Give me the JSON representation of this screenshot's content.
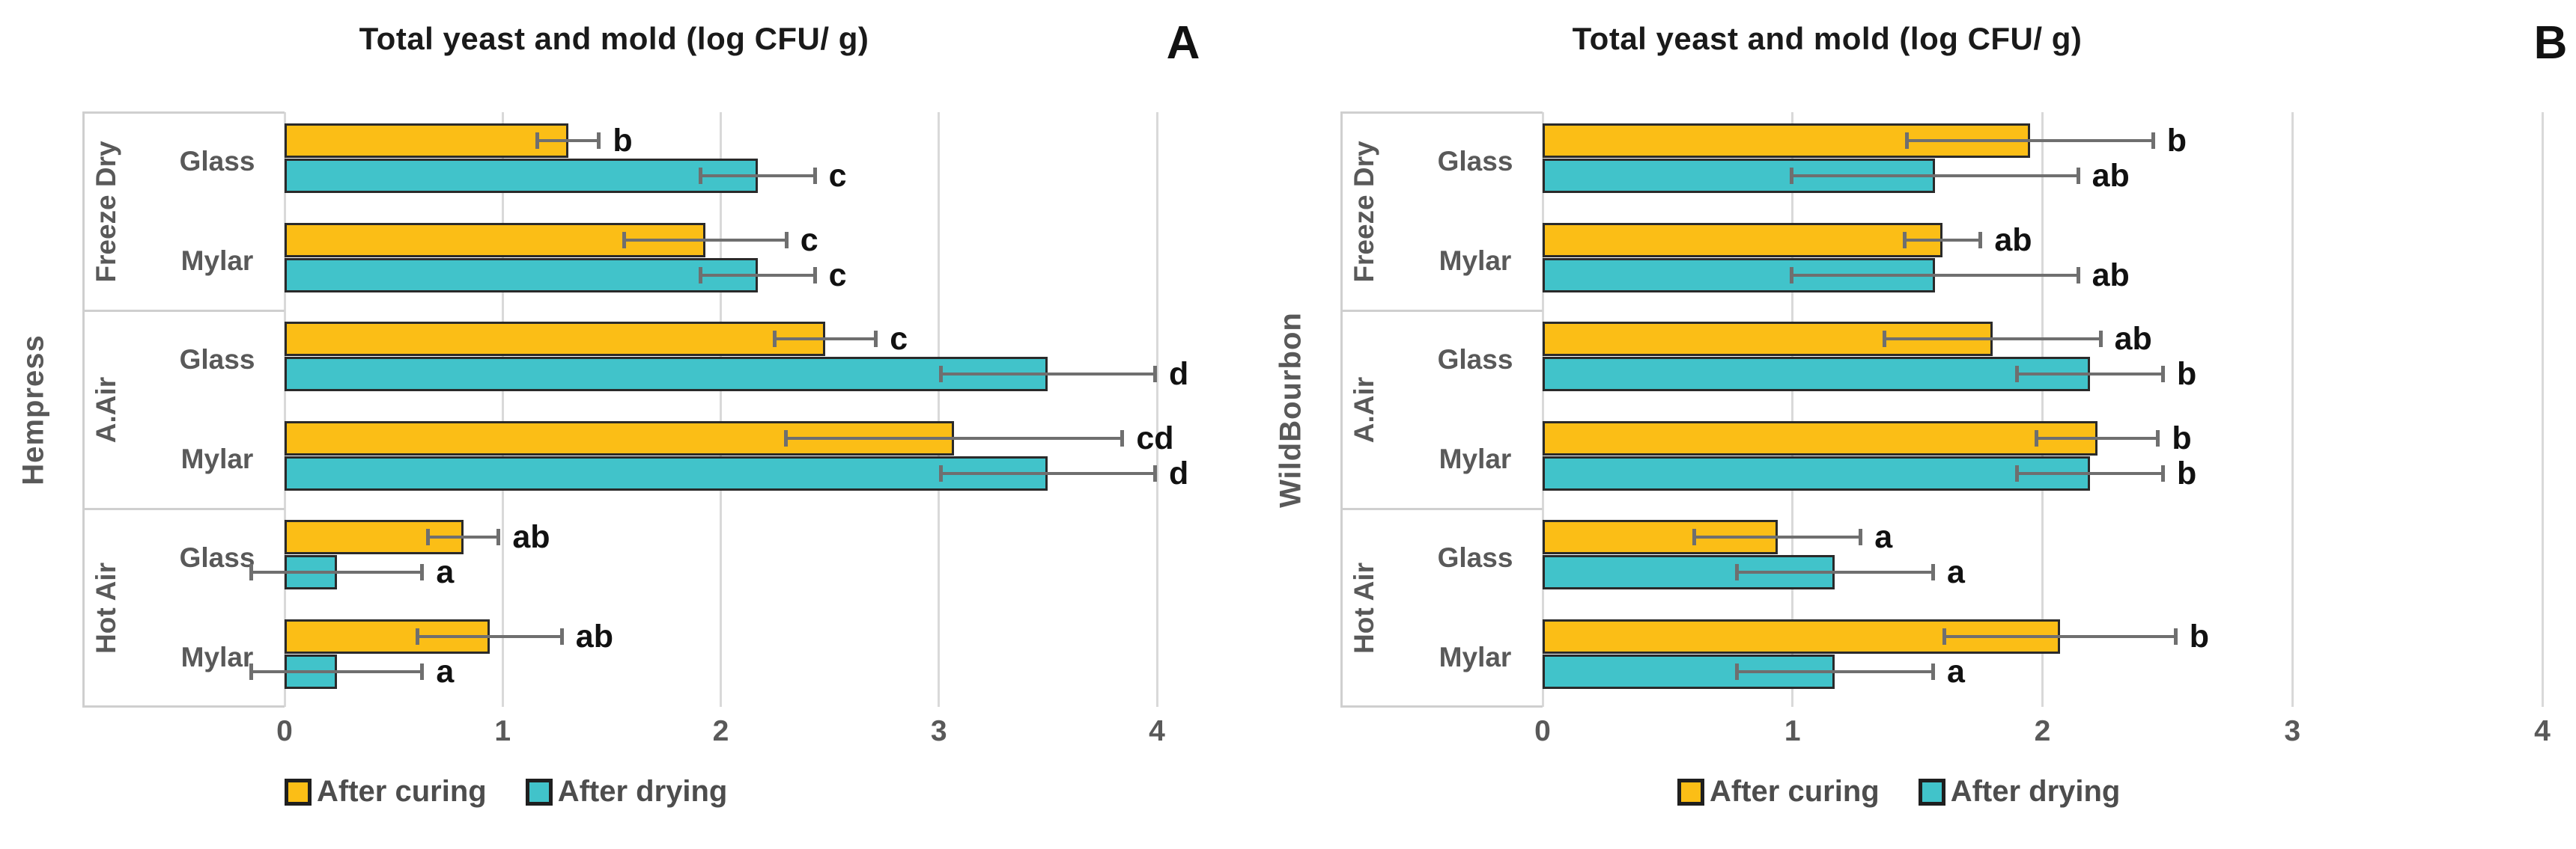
{
  "figure": {
    "background": "#ffffff",
    "series_colors": {
      "after_curing": "#FBBE16",
      "after_drying": "#41C3CA"
    },
    "bar_border_color": "#2a2a2a",
    "error_bar_color": "#6f6f6f",
    "grid_color": "#d9d9d9",
    "box_border_color": "#cfcfcf",
    "label_color": "#595959",
    "letter_color": "#111111"
  },
  "chart_data": [
    {
      "type": "bar",
      "orientation": "horizontal",
      "panel_label": "A",
      "title": "Total yeast and mold (log CFU/ g)",
      "outer_category": "Hempress",
      "xlim": [
        0,
        4
      ],
      "x_ticks": [
        "0",
        "1",
        "2",
        "3",
        "4"
      ],
      "grid": true,
      "legend_position": "bottom",
      "legend": [
        "After curing",
        "After drying"
      ],
      "series_order": [
        "after_curing",
        "after_drying"
      ],
      "groups": [
        {
          "label": "Freeze Dry",
          "rows": [
            {
              "label": "Glass",
              "after_curing": {
                "value": 1.3,
                "error": 0.15,
                "letter": "b"
              },
              "after_drying": {
                "value": 2.17,
                "error": 0.27,
                "letter": "c"
              }
            },
            {
              "label": "Mylar",
              "after_curing": {
                "value": 1.93,
                "error": 0.38,
                "letter": "c"
              },
              "after_drying": {
                "value": 2.17,
                "error": 0.27,
                "letter": "c"
              }
            }
          ]
        },
        {
          "label": "A.Air",
          "rows": [
            {
              "label": "Glass",
              "after_curing": {
                "value": 2.48,
                "error": 0.24,
                "letter": "c"
              },
              "after_drying": {
                "value": 3.5,
                "error": 0.5,
                "letter": "d"
              }
            },
            {
              "label": "Mylar",
              "after_curing": {
                "value": 3.07,
                "error": 0.78,
                "letter": "cd"
              },
              "after_drying": {
                "value": 3.5,
                "error": 0.5,
                "letter": "d"
              }
            }
          ]
        },
        {
          "label": "Hot Air",
          "rows": [
            {
              "label": "Glass",
              "after_curing": {
                "value": 0.82,
                "error": 0.17,
                "letter": "ab"
              },
              "after_drying": {
                "value": 0.24,
                "error": 0.4,
                "letter": "a"
              }
            },
            {
              "label": "Mylar",
              "after_curing": {
                "value": 0.94,
                "error": 0.34,
                "letter": "ab"
              },
              "after_drying": {
                "value": 0.24,
                "error": 0.4,
                "letter": "a"
              }
            }
          ]
        }
      ]
    },
    {
      "type": "bar",
      "orientation": "horizontal",
      "panel_label": "B",
      "title": "Total yeast and mold (log CFU/ g)",
      "outer_category": "WildBourbon",
      "xlim": [
        0,
        4
      ],
      "x_ticks": [
        "0",
        "1",
        "2",
        "3",
        "4"
      ],
      "grid": true,
      "legend_position": "bottom",
      "legend": [
        "After curing",
        "After drying"
      ],
      "series_order": [
        "after_curing",
        "after_drying"
      ],
      "groups": [
        {
          "label": "Freeze Dry",
          "rows": [
            {
              "label": "Glass",
              "after_curing": {
                "value": 1.95,
                "error": 0.5,
                "letter": "b"
              },
              "after_drying": {
                "value": 1.57,
                "error": 0.58,
                "letter": "ab"
              }
            },
            {
              "label": "Mylar",
              "after_curing": {
                "value": 1.6,
                "error": 0.16,
                "letter": "ab"
              },
              "after_drying": {
                "value": 1.57,
                "error": 0.58,
                "letter": "ab"
              }
            }
          ]
        },
        {
          "label": "A.Air",
          "rows": [
            {
              "label": "Glass",
              "after_curing": {
                "value": 1.8,
                "error": 0.44,
                "letter": "ab"
              },
              "after_drying": {
                "value": 2.19,
                "error": 0.3,
                "letter": "b"
              }
            },
            {
              "label": "Mylar",
              "after_curing": {
                "value": 2.22,
                "error": 0.25,
                "letter": "b"
              },
              "after_drying": {
                "value": 2.19,
                "error": 0.3,
                "letter": "b"
              }
            }
          ]
        },
        {
          "label": "Hot Air",
          "rows": [
            {
              "label": "Glass",
              "after_curing": {
                "value": 0.94,
                "error": 0.34,
                "letter": "a"
              },
              "after_drying": {
                "value": 1.17,
                "error": 0.4,
                "letter": "a"
              }
            },
            {
              "label": "Mylar",
              "after_curing": {
                "value": 2.07,
                "error": 0.47,
                "letter": "b"
              },
              "after_drying": {
                "value": 1.17,
                "error": 0.4,
                "letter": "a"
              }
            }
          ]
        }
      ]
    }
  ]
}
